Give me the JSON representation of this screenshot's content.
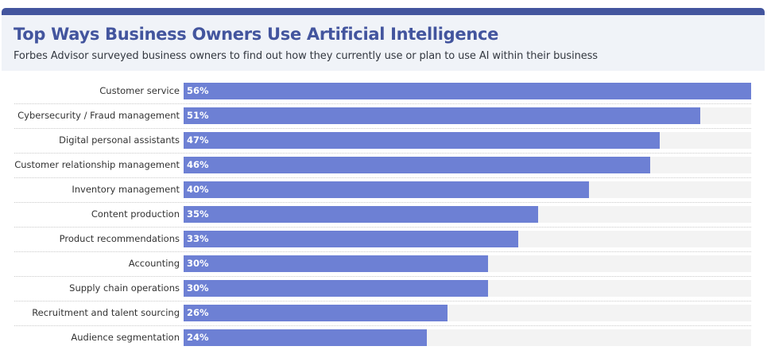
{
  "header": {
    "title": "Top Ways Business Owners Use Artificial Intelligence",
    "subtitle": "Forbes Advisor surveyed business owners to find out how they currently use or plan to use AI within their business",
    "accent_color": "#43559e",
    "background_color": "#f0f3f8"
  },
  "colors": {
    "bar": "#6d80d4",
    "track": "#f3f3f3"
  },
  "rows": [
    {
      "label": "Customer service",
      "value_label": "56%"
    },
    {
      "label": "Cybersecurity / Fraud management",
      "value_label": "51%"
    },
    {
      "label": "Digital personal assistants",
      "value_label": "47%"
    },
    {
      "label": "Customer relationship management",
      "value_label": "46%"
    },
    {
      "label": "Inventory management",
      "value_label": "40%"
    },
    {
      "label": "Content production",
      "value_label": "35%"
    },
    {
      "label": "Product recommendations",
      "value_label": "33%"
    },
    {
      "label": "Accounting",
      "value_label": "30%"
    },
    {
      "label": "Supply chain operations",
      "value_label": "30%"
    },
    {
      "label": "Recruitment and talent sourcing",
      "value_label": "26%"
    },
    {
      "label": "Audience segmentation",
      "value_label": "24%"
    }
  ],
  "chart_data": {
    "type": "bar",
    "orientation": "horizontal",
    "title": "Top Ways Business Owners Use Artificial Intelligence",
    "subtitle": "Forbes Advisor surveyed business owners to find out how they currently use or plan to use AI within their business",
    "categories": [
      "Customer service",
      "Cybersecurity / Fraud management",
      "Digital personal assistants",
      "Customer relationship management",
      "Inventory management",
      "Content production",
      "Product recommendations",
      "Accounting",
      "Supply chain operations",
      "Recruitment and talent sourcing",
      "Audience segmentation"
    ],
    "values": [
      56,
      51,
      47,
      46,
      40,
      35,
      33,
      30,
      30,
      26,
      24
    ],
    "unit": "%",
    "xlabel": "",
    "ylabel": "",
    "xlim": [
      0,
      56
    ],
    "grid": false,
    "legend": null,
    "data_labels": true
  }
}
